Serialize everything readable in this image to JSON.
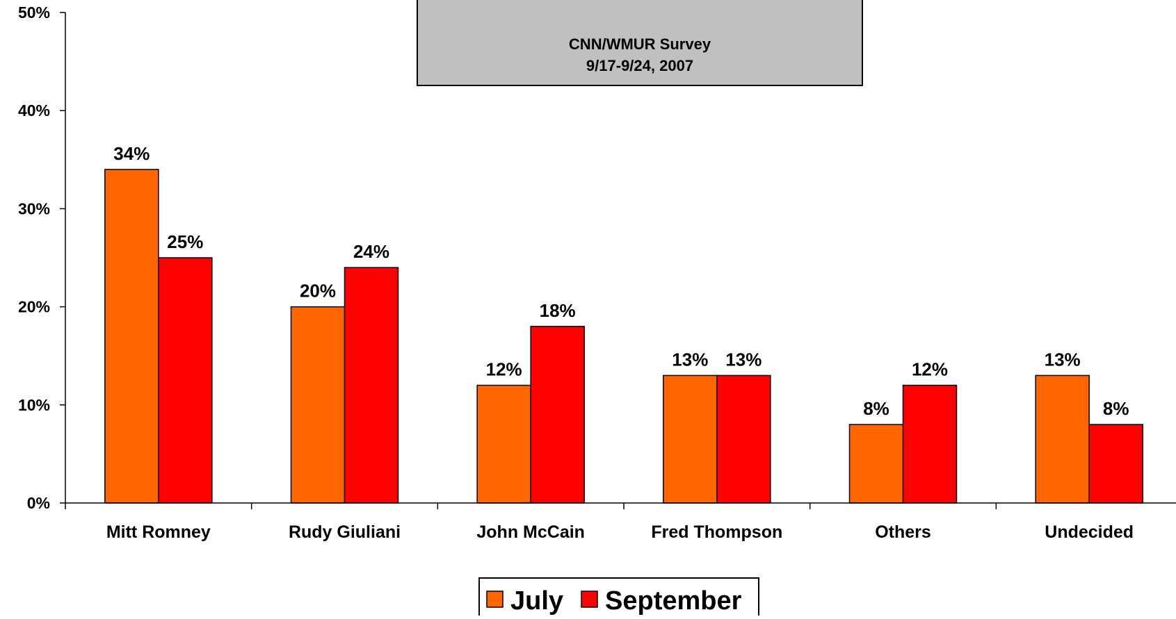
{
  "note": {
    "line1": "CNN/WMUR Survey",
    "line2": "9/17-9/24, 2007"
  },
  "colors": {
    "july": "#ff6600",
    "september": "#ff0000",
    "note_box": "#c0c0c0"
  },
  "chart_data": {
    "type": "bar",
    "categories": [
      "Mitt Romney",
      "Rudy Giuliani",
      "John McCain",
      "Fred Thompson",
      "Others",
      "Undecided"
    ],
    "series": [
      {
        "name": "July",
        "values": [
          34,
          20,
          12,
          13,
          8,
          13
        ],
        "labels": [
          "34%",
          "20%",
          "12%",
          "13%",
          "8%",
          "13%"
        ]
      },
      {
        "name": "September",
        "values": [
          25,
          24,
          18,
          13,
          12,
          8
        ],
        "labels": [
          "25%",
          "24%",
          "18%",
          "13%",
          "12%",
          "8%"
        ]
      }
    ],
    "yticks": [
      "0%",
      "10%",
      "20%",
      "30%",
      "40%",
      "50%"
    ],
    "ylim": [
      0,
      50
    ],
    "legend_position": "bottom"
  }
}
